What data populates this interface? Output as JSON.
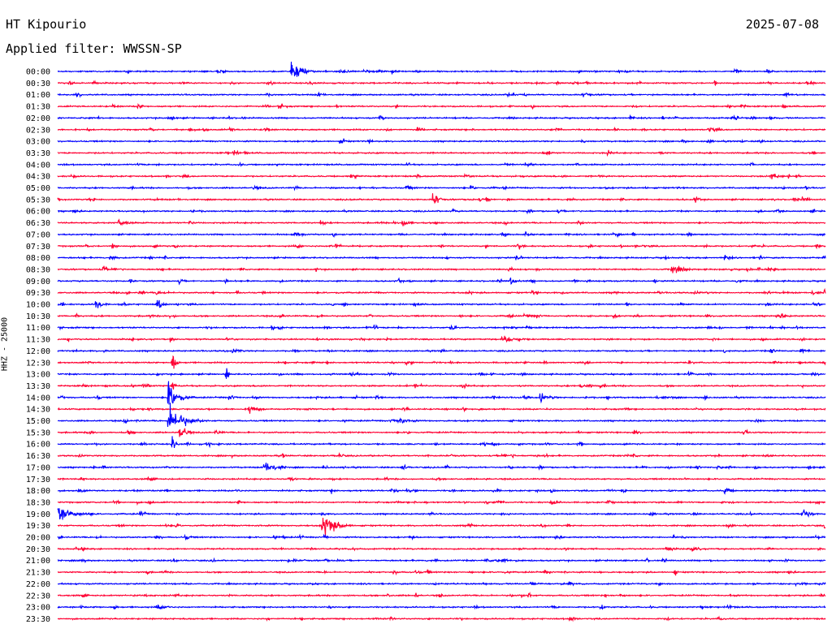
{
  "header": {
    "station": "HT Kipourio",
    "date": "2025-07-08",
    "filter": "Applied filter: WWSSN-SP"
  },
  "chart_data": {
    "type": "line",
    "subtype": "helicorder",
    "ylabel": "HHZ - 25000",
    "row_colors": [
      "#0000ff",
      "#ff0033"
    ],
    "rows": [
      {
        "label": "00:00",
        "events": [
          [
            0.305,
            14,
            0.035
          ],
          [
            0.925,
            3,
            0.03
          ]
        ]
      },
      {
        "label": "00:30",
        "events": []
      },
      {
        "label": "01:00",
        "events": []
      },
      {
        "label": "01:30",
        "events": [
          [
            0.62,
            4,
            0.005
          ]
        ]
      },
      {
        "label": "02:00",
        "events": [
          [
            0.42,
            3,
            0.01
          ]
        ]
      },
      {
        "label": "02:30",
        "events": []
      },
      {
        "label": "03:00",
        "events": []
      },
      {
        "label": "03:30",
        "events": []
      },
      {
        "label": "04:00",
        "events": [
          [
            0.61,
            3,
            0.04
          ]
        ]
      },
      {
        "label": "04:30",
        "events": [
          [
            0.93,
            4,
            0.03
          ]
        ]
      },
      {
        "label": "05:00",
        "events": [
          [
            0.455,
            3,
            0.03
          ]
        ]
      },
      {
        "label": "05:30",
        "events": [
          [
            0.49,
            9,
            0.02
          ]
        ]
      },
      {
        "label": "06:00",
        "events": []
      },
      {
        "label": "06:30",
        "events": [
          [
            0.08,
            4,
            0.04
          ],
          [
            0.45,
            5,
            0.03
          ]
        ]
      },
      {
        "label": "07:00",
        "events": [
          [
            0.36,
            4,
            0.01
          ],
          [
            0.75,
            4,
            0.005
          ]
        ]
      },
      {
        "label": "07:30",
        "events": [
          [
            0.6,
            5,
            0.02
          ]
        ]
      },
      {
        "label": "08:00",
        "events": [
          [
            0.87,
            4,
            0.02
          ]
        ]
      },
      {
        "label": "08:30",
        "events": [
          [
            0.06,
            6,
            0.008
          ],
          [
            0.8,
            6,
            0.04
          ]
        ]
      },
      {
        "label": "09:00",
        "events": [
          [
            0.16,
            4,
            0.01
          ],
          [
            0.59,
            6,
            0.02
          ]
        ]
      },
      {
        "label": "09:30",
        "events": [
          [
            0.13,
            3,
            0.04
          ],
          [
            1.0,
            6,
            0.01
          ]
        ]
      },
      {
        "label": "10:00",
        "events": [
          [
            0.05,
            8,
            0.02
          ],
          [
            0.13,
            7,
            0.02
          ]
        ]
      },
      {
        "label": "10:30",
        "events": [
          [
            0.94,
            4,
            0.03
          ]
        ]
      },
      {
        "label": "11:00",
        "events": []
      },
      {
        "label": "11:30",
        "events": [
          [
            0.58,
            7,
            0.03
          ]
        ]
      },
      {
        "label": "12:00",
        "events": []
      },
      {
        "label": "12:30",
        "events": [
          [
            0.15,
            16,
            0.01
          ]
        ]
      },
      {
        "label": "13:00",
        "events": [
          [
            0.22,
            8,
            0.008
          ]
        ]
      },
      {
        "label": "13:30",
        "events": [
          [
            0.15,
            6,
            0.01
          ]
        ]
      },
      {
        "label": "14:00",
        "events": [
          [
            0.145,
            18,
            0.035
          ],
          [
            0.63,
            7,
            0.015
          ]
        ]
      },
      {
        "label": "14:30",
        "events": [
          [
            0.25,
            5,
            0.04
          ]
        ]
      },
      {
        "label": "15:00",
        "events": [
          [
            0.145,
            19,
            0.05
          ],
          [
            0.445,
            5,
            0.04
          ]
        ]
      },
      {
        "label": "15:30",
        "events": [
          [
            0.16,
            12,
            0.02
          ]
        ]
      },
      {
        "label": "16:00",
        "events": [
          [
            0.15,
            10,
            0.01
          ]
        ]
      },
      {
        "label": "16:30",
        "events": []
      },
      {
        "label": "17:00",
        "events": [
          [
            0.27,
            8,
            0.04
          ],
          [
            0.45,
            6,
            0.01
          ]
        ]
      },
      {
        "label": "17:30",
        "events": []
      },
      {
        "label": "18:00",
        "events": [
          [
            0.87,
            5,
            0.02
          ]
        ]
      },
      {
        "label": "18:30",
        "events": []
      },
      {
        "label": "19:00",
        "events": [
          [
            0.0,
            13,
            0.05
          ],
          [
            0.97,
            7,
            0.03
          ]
        ]
      },
      {
        "label": "19:30",
        "events": [
          [
            0.345,
            16,
            0.045
          ]
        ]
      },
      {
        "label": "20:00",
        "events": []
      },
      {
        "label": "20:30",
        "events": []
      },
      {
        "label": "21:00",
        "events": []
      },
      {
        "label": "21:30",
        "events": [
          [
            0.805,
            5,
            0.005
          ]
        ]
      },
      {
        "label": "22:00",
        "events": []
      },
      {
        "label": "22:30",
        "events": []
      },
      {
        "label": "23:00",
        "events": []
      },
      {
        "label": "23:30",
        "events": []
      }
    ]
  }
}
